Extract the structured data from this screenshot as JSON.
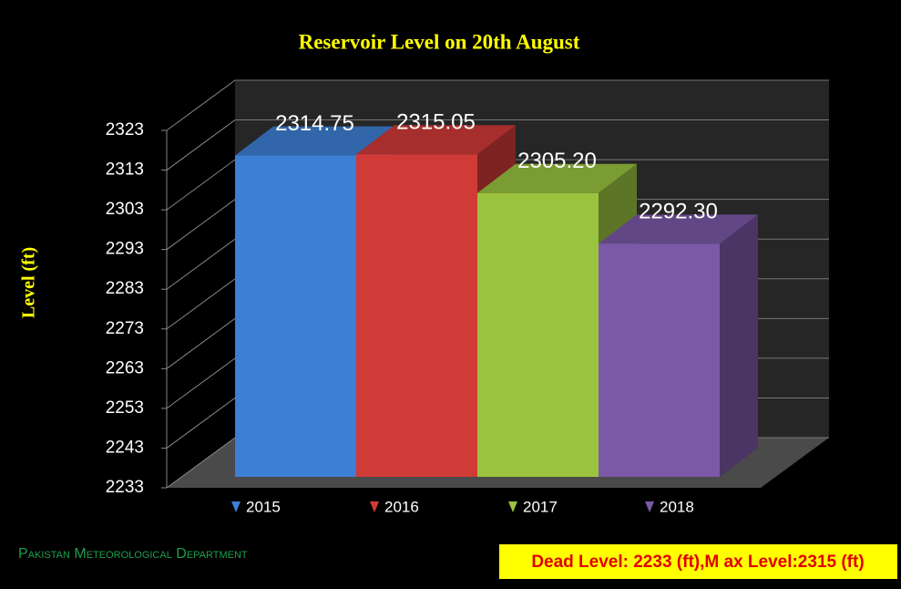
{
  "chart_data": {
    "type": "bar3d",
    "title": "Reservoir Level on 20th August",
    "y_label": "Level  (ft)",
    "categories": [
      null
    ],
    "series": [
      {
        "name": "2015",
        "color": "#3d7fd4",
        "values": [
          2314.75
        ],
        "value_labels": [
          "2314.75"
        ]
      },
      {
        "name": "2016",
        "color": "#d03a37",
        "values": [
          2315.05
        ],
        "value_labels": [
          "2315.05"
        ]
      },
      {
        "name": "2017",
        "color": "#9ac33f",
        "values": [
          2305.2
        ],
        "value_labels": [
          "2305.20"
        ]
      },
      {
        "name": "2018",
        "color": "#7b59a8",
        "values": [
          2292.3
        ],
        "value_labels": [
          "2292.30"
        ]
      }
    ],
    "ylim": [
      2233,
      2323
    ],
    "yticks": [
      2233,
      2243,
      2253,
      2263,
      2273,
      2283,
      2293,
      2303,
      2313,
      2323
    ],
    "grid": true,
    "legend": "bottom",
    "source": "Pakistan Meteorological Department",
    "note": "Dead Level: 2233 (ft),M ax Level:2315 (ft)"
  }
}
